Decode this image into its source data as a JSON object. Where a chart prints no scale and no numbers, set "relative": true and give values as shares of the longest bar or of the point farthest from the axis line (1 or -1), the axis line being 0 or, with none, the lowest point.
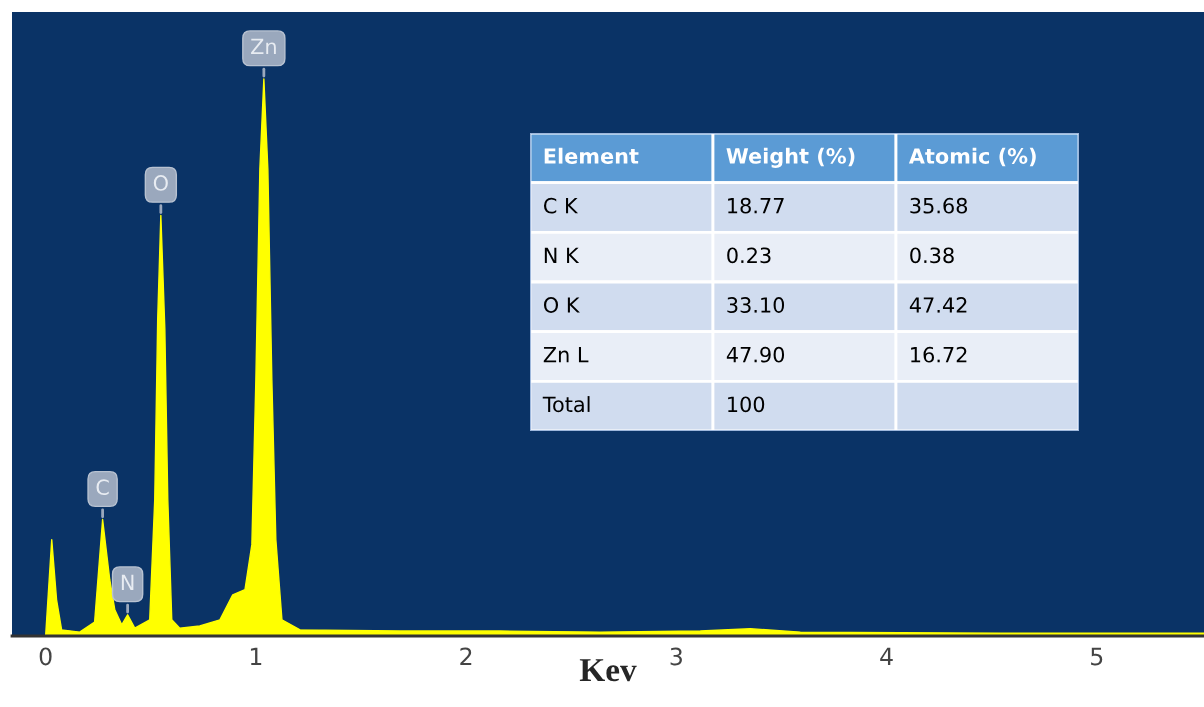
{
  "chart_data": [
    {
      "type": "area",
      "relative": true,
      "xlabel": "Kev",
      "xlim": [
        -0.16,
        5.51
      ],
      "xticks": [
        0,
        1,
        2,
        3,
        4,
        5
      ],
      "grid": false,
      "series": [
        {
          "color": "#ffff00",
          "x": [
            0,
            0.029,
            0.052,
            0.076,
            0.162,
            0.233,
            0.271,
            0.305,
            0.329,
            0.362,
            0.39,
            0.424,
            0.495,
            0.519,
            0.533,
            0.548,
            0.567,
            0.581,
            0.6,
            0.638,
            0.733,
            0.829,
            0.89,
            0.948,
            0.981,
            1.0,
            1.019,
            1.038,
            1.057,
            1.076,
            1.095,
            1.124,
            1.21,
            1.686,
            2.162,
            2.638,
            3.114,
            3.352,
            3.59,
            4.543,
            5.51
          ],
          "values": [
            0,
            0.173,
            0.065,
            0.011,
            0.007,
            0.025,
            0.209,
            0.101,
            0.047,
            0.02,
            0.038,
            0.014,
            0.029,
            0.245,
            0.568,
            0.755,
            0.55,
            0.245,
            0.029,
            0.014,
            0.018,
            0.029,
            0.074,
            0.083,
            0.164,
            0.46,
            0.838,
            1,
            0.838,
            0.46,
            0.173,
            0.029,
            0.011,
            0.009,
            0.009,
            0.007,
            0.009,
            0.013,
            0.007,
            0.005,
            0.005
          ]
        }
      ],
      "annotations": [
        {
          "text": "Zn",
          "x": 1.038,
          "y": 1
        },
        {
          "text": "O",
          "x": 0.548,
          "y": 0.755
        },
        {
          "text": "C",
          "x": 0.271,
          "y": 0.209
        },
        {
          "text": "N",
          "x": 0.39,
          "y": 0.038
        }
      ]
    },
    {
      "type": "other",
      "categories": [
        "Element",
        "Weight (%)",
        "Atomic (%)"
      ],
      "y_categories": [
        "C K",
        "N K",
        "O K",
        "Zn L",
        "Total"
      ],
      "cell_labels": [
        [
          "18.77",
          "35.68"
        ],
        [
          "0.23",
          "0.38"
        ],
        [
          "33.10",
          "47.42"
        ],
        [
          "47.90",
          "16.72"
        ],
        [
          "100",
          null
        ]
      ]
    }
  ]
}
